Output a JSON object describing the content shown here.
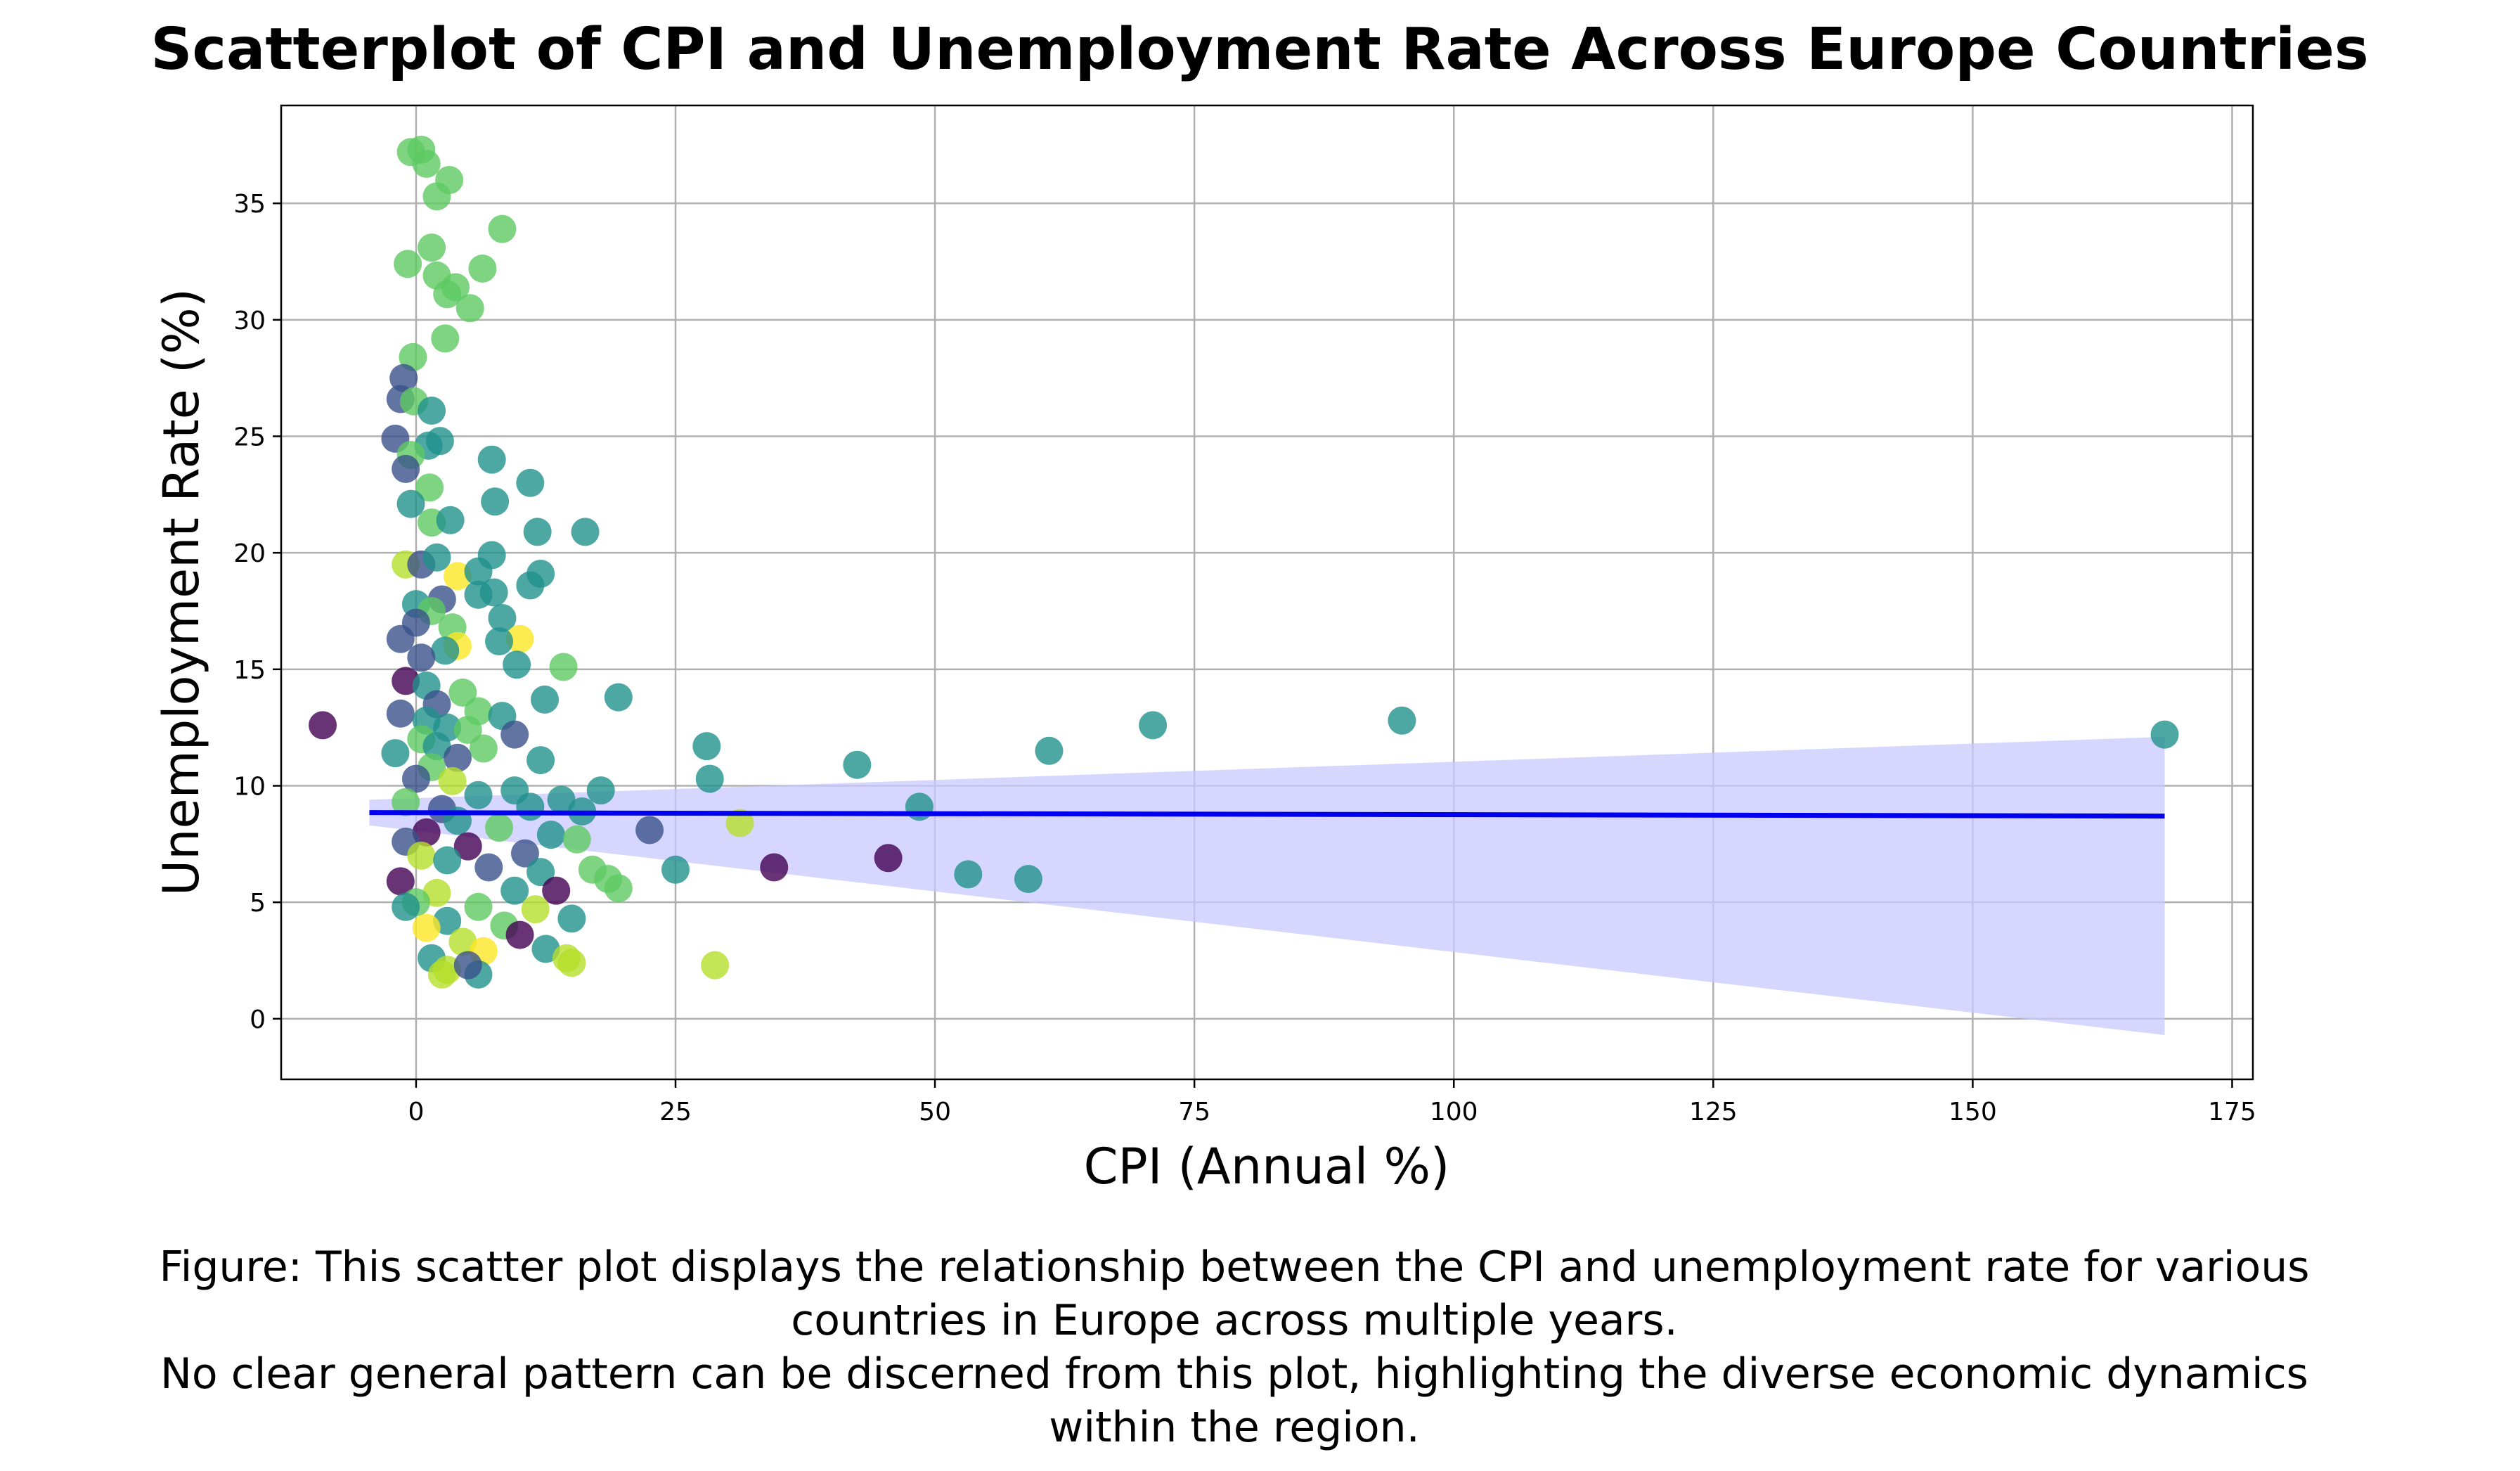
{
  "chart_data": {
    "type": "scatter",
    "title": "Scatterplot of CPI and Unemployment Rate Across Europe Countries",
    "xlabel": "CPI (Annual %)",
    "ylabel": "Unemployment Rate (%)",
    "xlim": [
      -13,
      177
    ],
    "ylim": [
      -2.6,
      39.2
    ],
    "xticks": [
      0,
      25,
      50,
      75,
      100,
      125,
      150,
      175
    ],
    "yticks": [
      0,
      5,
      10,
      15,
      20,
      25,
      30,
      35
    ],
    "grid": true,
    "regression": {
      "x": [
        -4.5,
        168.5
      ],
      "y": [
        8.85,
        8.7
      ],
      "ci_low": [
        8.3,
        -0.7
      ],
      "ci_high": [
        9.4,
        12.1
      ],
      "line_color": "#0000ee",
      "band_color": "#c8c8ff"
    },
    "points": [
      {
        "x": -0.5,
        "y": 37.2,
        "c": "#5ec962"
      },
      {
        "x": 0.5,
        "y": 37.3,
        "c": "#5ec962"
      },
      {
        "x": 1.0,
        "y": 36.7,
        "c": "#5ec962"
      },
      {
        "x": 3.2,
        "y": 36.0,
        "c": "#5ec962"
      },
      {
        "x": 2.0,
        "y": 35.3,
        "c": "#5ec962"
      },
      {
        "x": 8.3,
        "y": 33.9,
        "c": "#5ec962"
      },
      {
        "x": 1.5,
        "y": 33.1,
        "c": "#5ec962"
      },
      {
        "x": -0.8,
        "y": 32.4,
        "c": "#5ec962"
      },
      {
        "x": 6.4,
        "y": 32.2,
        "c": "#5ec962"
      },
      {
        "x": 2.0,
        "y": 31.9,
        "c": "#5ec962"
      },
      {
        "x": 3.8,
        "y": 31.4,
        "c": "#5ec962"
      },
      {
        "x": 3.0,
        "y": 31.1,
        "c": "#5ec962"
      },
      {
        "x": 5.2,
        "y": 30.5,
        "c": "#5ec962"
      },
      {
        "x": 2.8,
        "y": 29.2,
        "c": "#5ec962"
      },
      {
        "x": -0.3,
        "y": 28.4,
        "c": "#5ec962"
      },
      {
        "x": -1.2,
        "y": 27.5,
        "c": "#3b528b"
      },
      {
        "x": -1.5,
        "y": 26.6,
        "c": "#3b528b"
      },
      {
        "x": -0.2,
        "y": 26.5,
        "c": "#5ec962"
      },
      {
        "x": 1.5,
        "y": 26.1,
        "c": "#21918c"
      },
      {
        "x": -2.0,
        "y": 24.9,
        "c": "#3b528b"
      },
      {
        "x": 2.3,
        "y": 24.8,
        "c": "#21918c"
      },
      {
        "x": 1.2,
        "y": 24.6,
        "c": "#21918c"
      },
      {
        "x": -0.5,
        "y": 24.2,
        "c": "#5ec962"
      },
      {
        "x": 7.3,
        "y": 24.0,
        "c": "#21918c"
      },
      {
        "x": -1.0,
        "y": 23.6,
        "c": "#3b528b"
      },
      {
        "x": 11.0,
        "y": 23.0,
        "c": "#21918c"
      },
      {
        "x": 1.3,
        "y": 22.8,
        "c": "#5ec962"
      },
      {
        "x": 7.6,
        "y": 22.2,
        "c": "#21918c"
      },
      {
        "x": -0.5,
        "y": 22.1,
        "c": "#21918c"
      },
      {
        "x": 1.5,
        "y": 21.3,
        "c": "#5ec962"
      },
      {
        "x": 3.3,
        "y": 21.4,
        "c": "#21918c"
      },
      {
        "x": 11.7,
        "y": 20.9,
        "c": "#21918c"
      },
      {
        "x": 16.3,
        "y": 20.9,
        "c": "#21918c"
      },
      {
        "x": 7.3,
        "y": 19.9,
        "c": "#21918c"
      },
      {
        "x": -1.0,
        "y": 19.5,
        "c": "#b5de2b"
      },
      {
        "x": 0.5,
        "y": 19.5,
        "c": "#3b528b"
      },
      {
        "x": 2.0,
        "y": 19.8,
        "c": "#21918c"
      },
      {
        "x": 4.0,
        "y": 19.0,
        "c": "#fde725"
      },
      {
        "x": 6.0,
        "y": 19.2,
        "c": "#21918c"
      },
      {
        "x": 12.0,
        "y": 19.1,
        "c": "#21918c"
      },
      {
        "x": 11.0,
        "y": 18.6,
        "c": "#21918c"
      },
      {
        "x": 7.5,
        "y": 18.3,
        "c": "#21918c"
      },
      {
        "x": 6.0,
        "y": 18.2,
        "c": "#21918c"
      },
      {
        "x": 2.5,
        "y": 18.0,
        "c": "#3b528b"
      },
      {
        "x": 0.0,
        "y": 17.8,
        "c": "#21918c"
      },
      {
        "x": 1.5,
        "y": 17.5,
        "c": "#5ec962"
      },
      {
        "x": 8.3,
        "y": 17.2,
        "c": "#21918c"
      },
      {
        "x": 0.0,
        "y": 17.0,
        "c": "#3b528b"
      },
      {
        "x": 3.5,
        "y": 16.8,
        "c": "#5ec962"
      },
      {
        "x": -1.5,
        "y": 16.3,
        "c": "#3b528b"
      },
      {
        "x": 4.0,
        "y": 16.0,
        "c": "#fde725"
      },
      {
        "x": 10.0,
        "y": 16.3,
        "c": "#fde725"
      },
      {
        "x": 8.0,
        "y": 16.2,
        "c": "#21918c"
      },
      {
        "x": 2.8,
        "y": 15.8,
        "c": "#21918c"
      },
      {
        "x": 9.7,
        "y": 15.2,
        "c": "#21918c"
      },
      {
        "x": 14.2,
        "y": 15.1,
        "c": "#5ec962"
      },
      {
        "x": 0.5,
        "y": 15.5,
        "c": "#3b528b"
      },
      {
        "x": -1.0,
        "y": 14.5,
        "c": "#440154"
      },
      {
        "x": 1.0,
        "y": 14.3,
        "c": "#21918c"
      },
      {
        "x": 4.5,
        "y": 14.0,
        "c": "#5ec962"
      },
      {
        "x": 19.5,
        "y": 13.8,
        "c": "#21918c"
      },
      {
        "x": 12.4,
        "y": 13.7,
        "c": "#21918c"
      },
      {
        "x": 2.0,
        "y": 13.5,
        "c": "#3b528b"
      },
      {
        "x": -1.5,
        "y": 13.1,
        "c": "#3b528b"
      },
      {
        "x": 6.0,
        "y": 13.2,
        "c": "#5ec962"
      },
      {
        "x": 8.3,
        "y": 13.0,
        "c": "#21918c"
      },
      {
        "x": 1.0,
        "y": 12.8,
        "c": "#21918c"
      },
      {
        "x": -9.0,
        "y": 12.6,
        "c": "#440154"
      },
      {
        "x": 3.0,
        "y": 12.5,
        "c": "#21918c"
      },
      {
        "x": 5.0,
        "y": 12.4,
        "c": "#5ec962"
      },
      {
        "x": 9.5,
        "y": 12.2,
        "c": "#3b528b"
      },
      {
        "x": 0.5,
        "y": 12.0,
        "c": "#5ec962"
      },
      {
        "x": 2.0,
        "y": 11.7,
        "c": "#21918c"
      },
      {
        "x": 6.5,
        "y": 11.6,
        "c": "#5ec962"
      },
      {
        "x": -2.0,
        "y": 11.4,
        "c": "#21918c"
      },
      {
        "x": 4.0,
        "y": 11.2,
        "c": "#3b528b"
      },
      {
        "x": 12.0,
        "y": 11.1,
        "c": "#21918c"
      },
      {
        "x": 1.5,
        "y": 10.8,
        "c": "#5ec962"
      },
      {
        "x": 28.0,
        "y": 11.7,
        "c": "#21918c"
      },
      {
        "x": 42.5,
        "y": 10.9,
        "c": "#21918c"
      },
      {
        "x": 28.3,
        "y": 10.3,
        "c": "#21918c"
      },
      {
        "x": 61.0,
        "y": 11.5,
        "c": "#21918c"
      },
      {
        "x": 71.0,
        "y": 12.6,
        "c": "#21918c"
      },
      {
        "x": 95.0,
        "y": 12.8,
        "c": "#21918c"
      },
      {
        "x": 168.5,
        "y": 12.2,
        "c": "#21918c"
      },
      {
        "x": 0.0,
        "y": 10.3,
        "c": "#3b528b"
      },
      {
        "x": 3.5,
        "y": 10.2,
        "c": "#b5de2b"
      },
      {
        "x": 9.5,
        "y": 9.8,
        "c": "#21918c"
      },
      {
        "x": 17.8,
        "y": 9.8,
        "c": "#21918c"
      },
      {
        "x": 6.0,
        "y": 9.6,
        "c": "#21918c"
      },
      {
        "x": 14.0,
        "y": 9.4,
        "c": "#21918c"
      },
      {
        "x": -1.0,
        "y": 9.3,
        "c": "#5ec962"
      },
      {
        "x": 2.5,
        "y": 9.0,
        "c": "#3b528b"
      },
      {
        "x": 48.5,
        "y": 9.1,
        "c": "#21918c"
      },
      {
        "x": 11.0,
        "y": 9.1,
        "c": "#21918c"
      },
      {
        "x": 16.0,
        "y": 8.9,
        "c": "#21918c"
      },
      {
        "x": 31.2,
        "y": 8.4,
        "c": "#b5de2b"
      },
      {
        "x": 22.5,
        "y": 8.1,
        "c": "#3b528b"
      },
      {
        "x": 4.0,
        "y": 8.5,
        "c": "#21918c"
      },
      {
        "x": 1.0,
        "y": 8.0,
        "c": "#440154"
      },
      {
        "x": 8.0,
        "y": 8.2,
        "c": "#5ec962"
      },
      {
        "x": 13.0,
        "y": 7.9,
        "c": "#21918c"
      },
      {
        "x": 15.5,
        "y": 7.7,
        "c": "#5ec962"
      },
      {
        "x": -1.0,
        "y": 7.6,
        "c": "#3b528b"
      },
      {
        "x": 5.0,
        "y": 7.4,
        "c": "#440154"
      },
      {
        "x": 10.5,
        "y": 7.1,
        "c": "#3b528b"
      },
      {
        "x": 0.5,
        "y": 7.0,
        "c": "#b5de2b"
      },
      {
        "x": 45.5,
        "y": 6.9,
        "c": "#440154"
      },
      {
        "x": 3.0,
        "y": 6.8,
        "c": "#21918c"
      },
      {
        "x": 34.5,
        "y": 6.5,
        "c": "#440154"
      },
      {
        "x": 25.0,
        "y": 6.4,
        "c": "#21918c"
      },
      {
        "x": 17.0,
        "y": 6.4,
        "c": "#5ec962"
      },
      {
        "x": 7.0,
        "y": 6.5,
        "c": "#3b528b"
      },
      {
        "x": 12.0,
        "y": 6.3,
        "c": "#21918c"
      },
      {
        "x": -1.5,
        "y": 5.9,
        "c": "#440154"
      },
      {
        "x": 53.2,
        "y": 6.2,
        "c": "#21918c"
      },
      {
        "x": 59.0,
        "y": 6.0,
        "c": "#21918c"
      },
      {
        "x": 18.5,
        "y": 6.0,
        "c": "#5ec962"
      },
      {
        "x": 19.5,
        "y": 5.6,
        "c": "#5ec962"
      },
      {
        "x": 13.5,
        "y": 5.5,
        "c": "#440154"
      },
      {
        "x": 2.0,
        "y": 5.4,
        "c": "#b5de2b"
      },
      {
        "x": 9.5,
        "y": 5.5,
        "c": "#21918c"
      },
      {
        "x": 0.0,
        "y": 5.0,
        "c": "#5ec962"
      },
      {
        "x": -1.0,
        "y": 4.8,
        "c": "#21918c"
      },
      {
        "x": 6.0,
        "y": 4.8,
        "c": "#5ec962"
      },
      {
        "x": 11.5,
        "y": 4.7,
        "c": "#b5de2b"
      },
      {
        "x": 15.0,
        "y": 4.3,
        "c": "#21918c"
      },
      {
        "x": 3.0,
        "y": 4.2,
        "c": "#21918c"
      },
      {
        "x": 8.5,
        "y": 4.0,
        "c": "#5ec962"
      },
      {
        "x": 1.0,
        "y": 3.9,
        "c": "#fde725"
      },
      {
        "x": 10.0,
        "y": 3.6,
        "c": "#440154"
      },
      {
        "x": 4.5,
        "y": 3.3,
        "c": "#b5de2b"
      },
      {
        "x": 12.5,
        "y": 3.0,
        "c": "#21918c"
      },
      {
        "x": 6.5,
        "y": 2.9,
        "c": "#fde725"
      },
      {
        "x": 1.5,
        "y": 2.6,
        "c": "#21918c"
      },
      {
        "x": 14.5,
        "y": 2.6,
        "c": "#b5de2b"
      },
      {
        "x": 15.0,
        "y": 2.4,
        "c": "#b5de2b"
      },
      {
        "x": 28.8,
        "y": 2.3,
        "c": "#b5de2b"
      },
      {
        "x": 3.0,
        "y": 2.1,
        "c": "#b5de2b"
      },
      {
        "x": 6.0,
        "y": 1.9,
        "c": "#21918c"
      },
      {
        "x": 2.5,
        "y": 1.9,
        "c": "#b5de2b"
      },
      {
        "x": 5.0,
        "y": 2.3,
        "c": "#3b528b"
      }
    ]
  },
  "caption_lines": [
    "Figure: This scatter plot displays the relationship between the CPI and unemployment rate for various",
    "countries in Europe across multiple years.",
    "No clear general pattern can be discerned from this plot, highlighting the diverse economic dynamics",
    "within the region."
  ]
}
